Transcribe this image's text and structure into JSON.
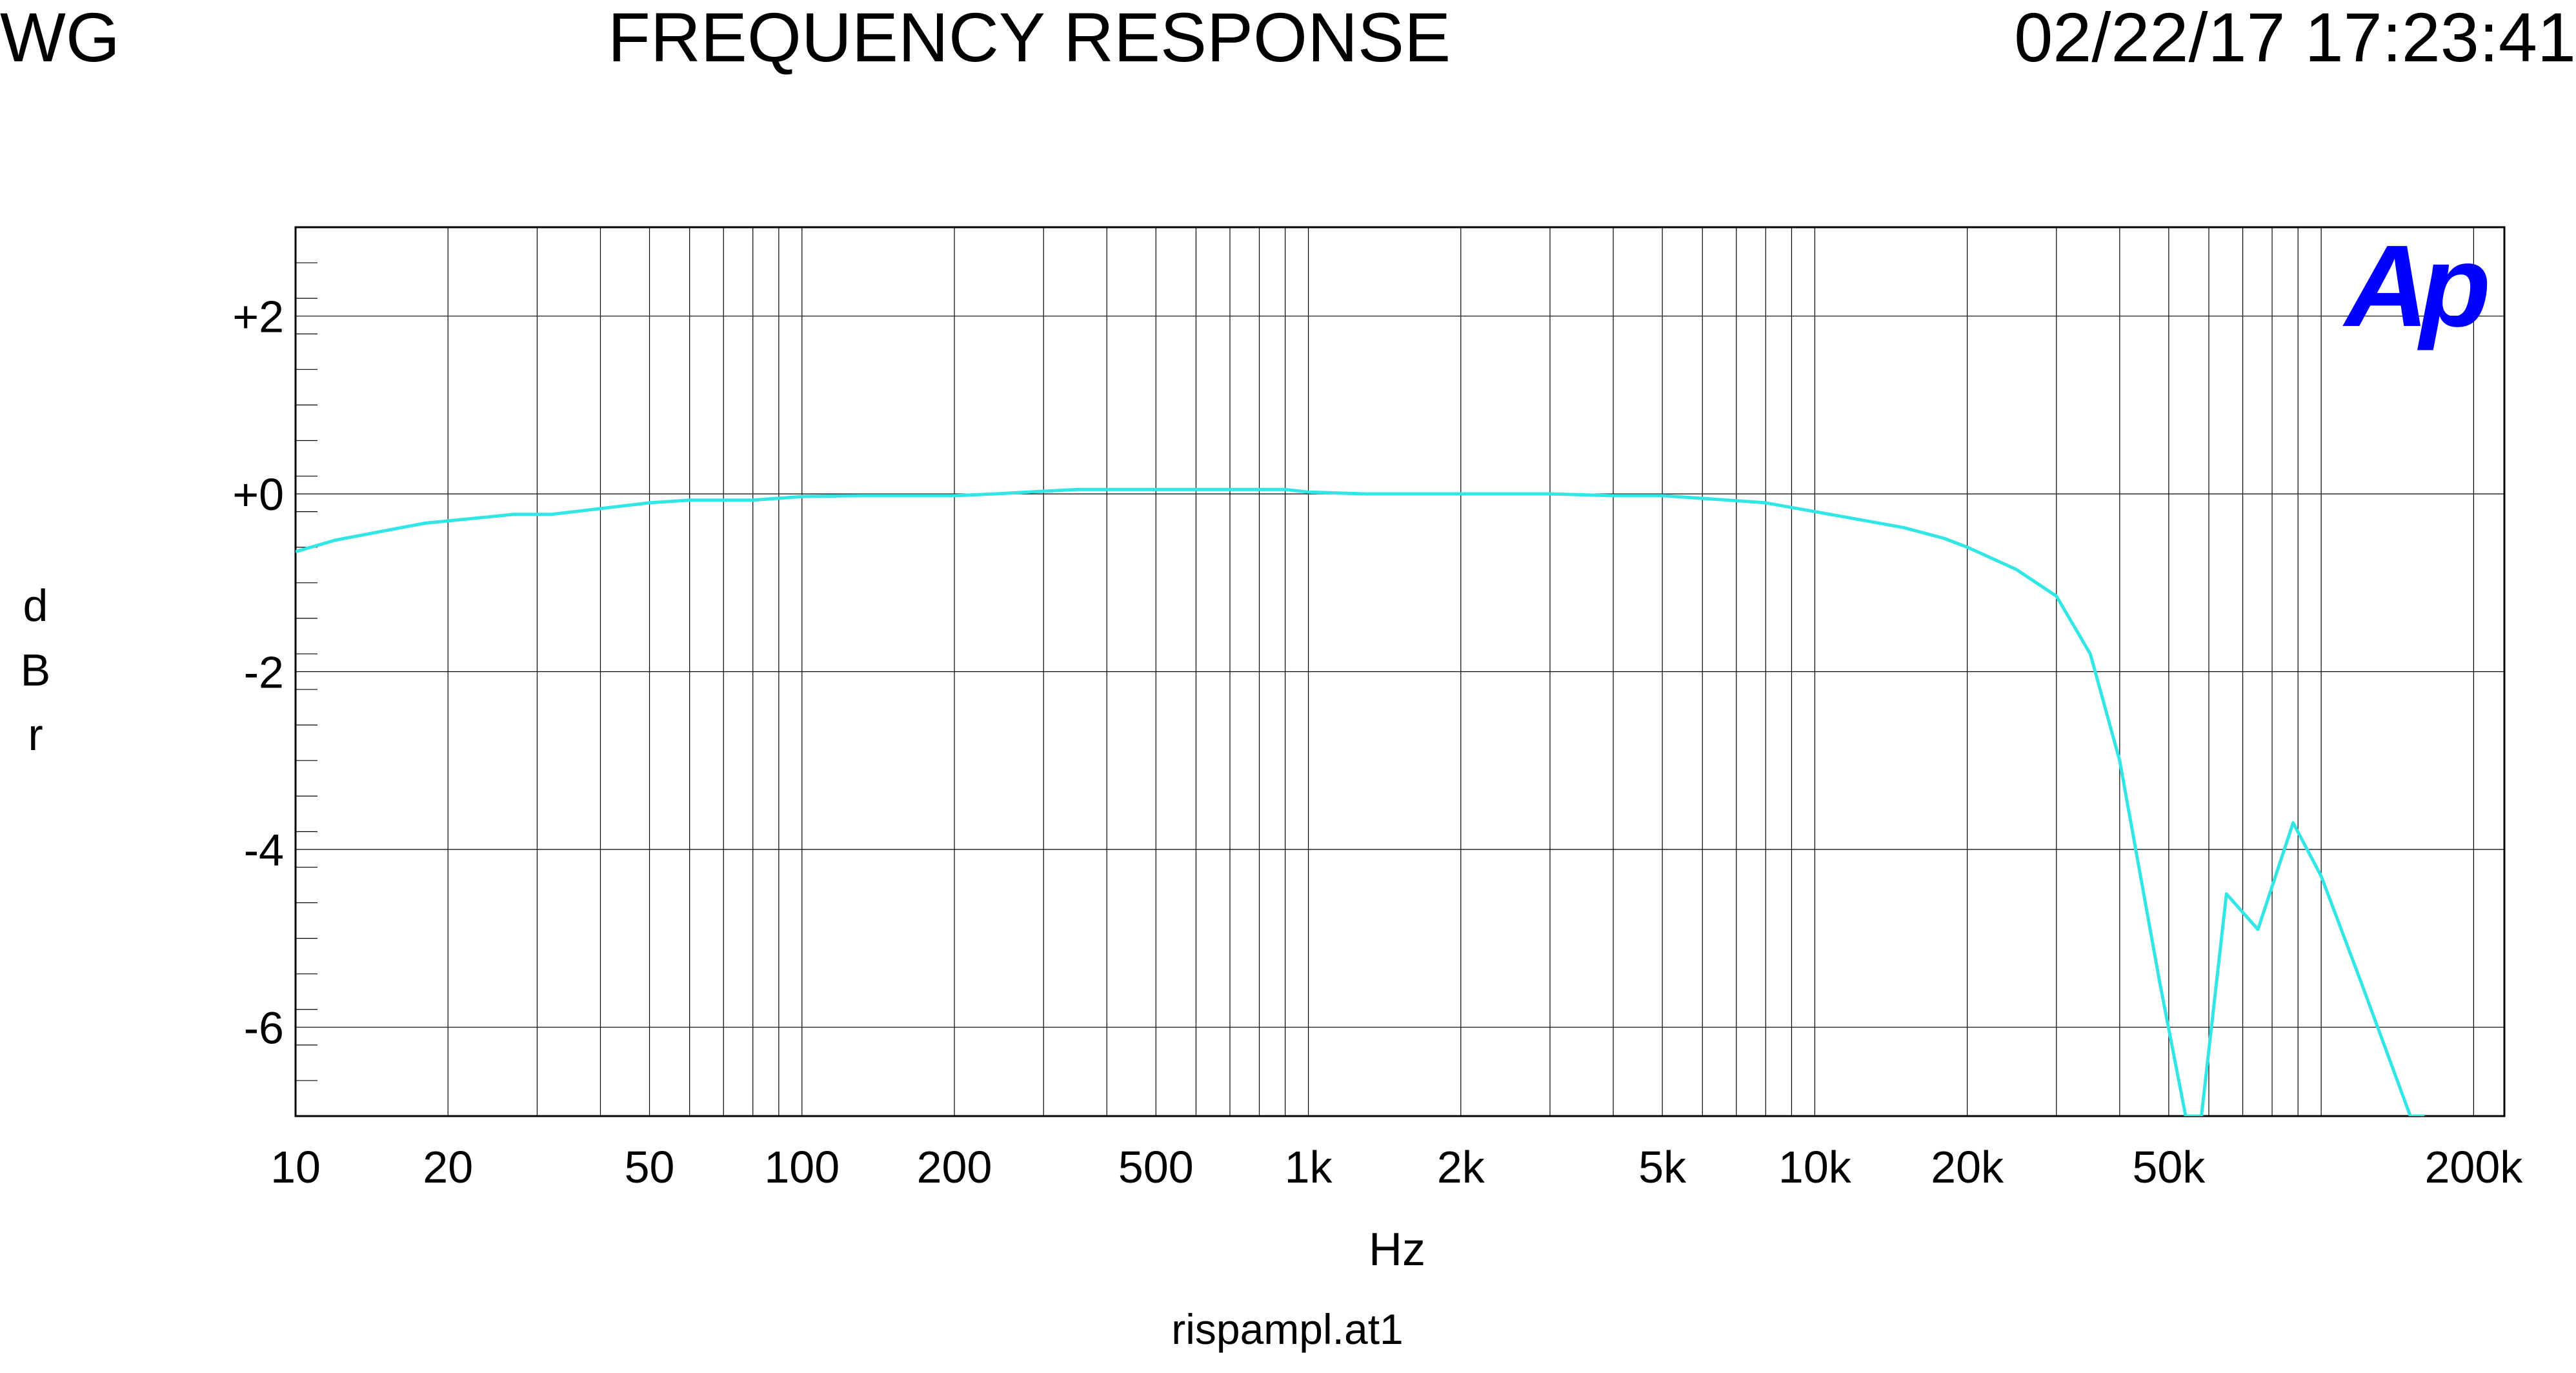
{
  "header": {
    "left": "WG",
    "center": "FREQUENCY RESPONSE",
    "right": "02/22/17 17:23:41"
  },
  "logo": {
    "text": "Ap",
    "color": "#0000ff"
  },
  "footer": {
    "filename": "rispampl.at1"
  },
  "chart_data": {
    "type": "line",
    "title": "FREQUENCY RESPONSE",
    "xlabel": "Hz",
    "ylabel": "dBr",
    "xscale": "log",
    "xlim": [
      10,
      230000
    ],
    "ylim": [
      -7,
      3
    ],
    "grid": true,
    "xticks": [
      {
        "value": 10,
        "label": "10"
      },
      {
        "value": 20,
        "label": "20"
      },
      {
        "value": 50,
        "label": "50"
      },
      {
        "value": 100,
        "label": "100"
      },
      {
        "value": 200,
        "label": "200"
      },
      {
        "value": 500,
        "label": "500"
      },
      {
        "value": 1000,
        "label": "1k"
      },
      {
        "value": 2000,
        "label": "2k"
      },
      {
        "value": 5000,
        "label": "5k"
      },
      {
        "value": 10000,
        "label": "10k"
      },
      {
        "value": 20000,
        "label": "20k"
      },
      {
        "value": 50000,
        "label": "50k"
      },
      {
        "value": 200000,
        "label": "200k"
      }
    ],
    "yticks": [
      {
        "value": 2,
        "label": "+2"
      },
      {
        "value": 0,
        "label": "+0"
      },
      {
        "value": -2,
        "label": "-2"
      },
      {
        "value": -4,
        "label": "-4"
      },
      {
        "value": -6,
        "label": "-6"
      }
    ],
    "series": [
      {
        "color": "#33e6e6",
        "x": [
          10,
          12,
          18,
          27,
          32,
          50,
          60,
          80,
          100,
          130,
          200,
          240,
          350,
          500,
          700,
          900,
          1000,
          1300,
          2000,
          3000,
          4000,
          5000,
          6000,
          8000,
          10000,
          12000,
          15000,
          18000,
          20000,
          25000,
          30000,
          35000,
          40000,
          48000,
          54000,
          58000,
          65000,
          75000,
          88000,
          100000,
          120000,
          150000,
          160000
        ],
        "y": [
          -0.65,
          -0.52,
          -0.33,
          -0.23,
          -0.23,
          -0.1,
          -0.07,
          -0.07,
          -0.03,
          -0.02,
          -0.02,
          0,
          0.05,
          0.05,
          0.05,
          0.05,
          0.02,
          0,
          0,
          0,
          -0.02,
          -0.02,
          -0.05,
          -0.1,
          -0.2,
          -0.28,
          -0.38,
          -0.5,
          -0.6,
          -0.85,
          -1.15,
          -1.8,
          -3.0,
          -5.5,
          -7.0,
          -7.0,
          -4.5,
          -4.9,
          -3.7,
          -4.3,
          -5.5,
          -7.0,
          -7.0
        ]
      }
    ]
  }
}
